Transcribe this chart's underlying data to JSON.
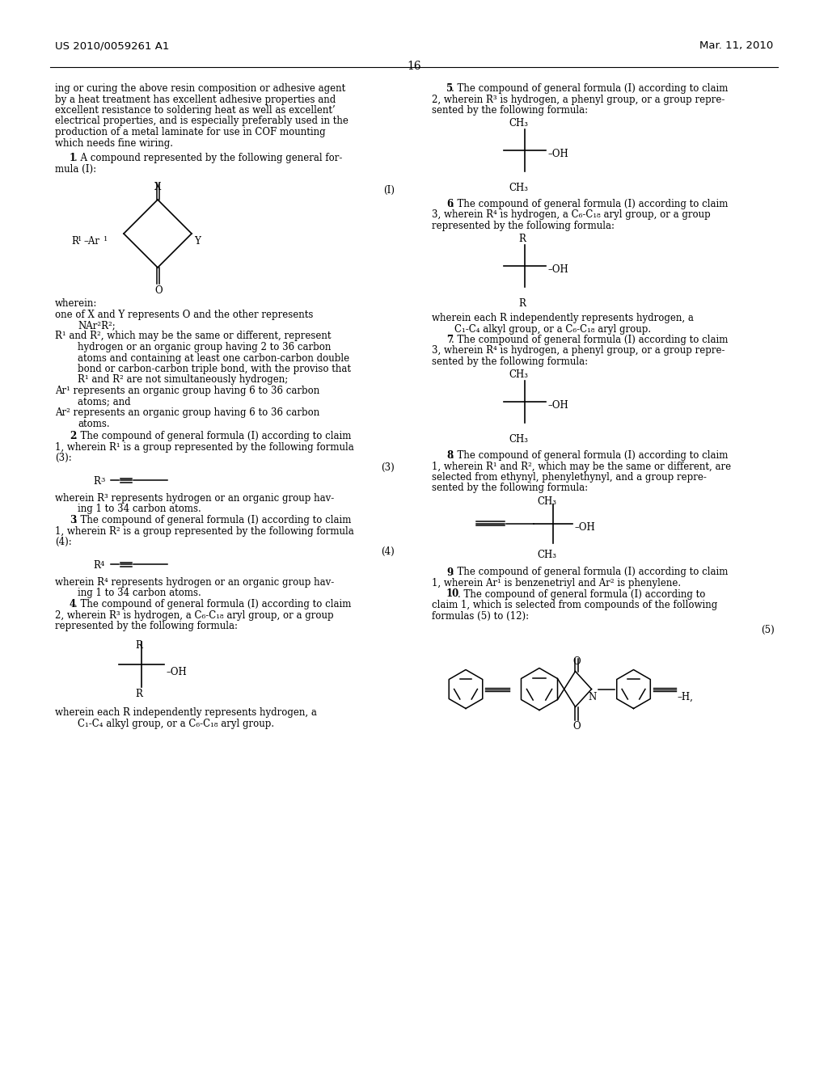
{
  "bg_color": "#ffffff",
  "text_color": "#000000",
  "header_left": "US 2010/0059261 A1",
  "header_right": "Mar. 11, 2010",
  "page_number": "16"
}
